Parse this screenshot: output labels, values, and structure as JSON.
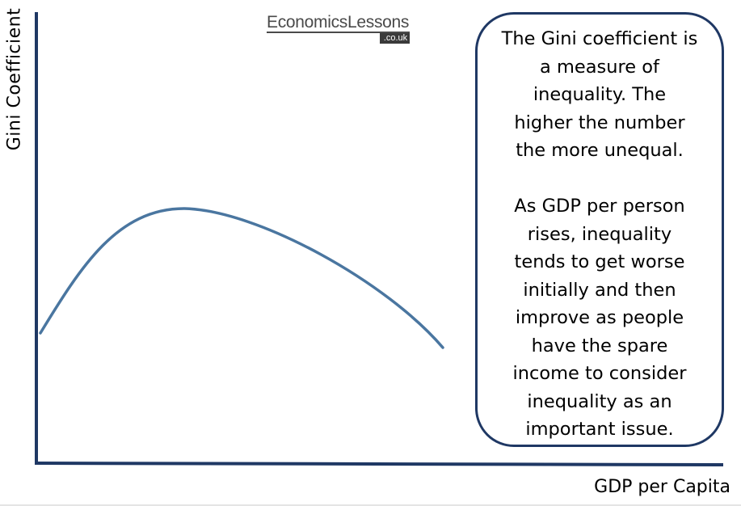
{
  "labels": {
    "y_axis": "Gini Coefficient",
    "x_axis": "GDP per Capita"
  },
  "logo": {
    "name": "EconomicsLessons",
    "tld": ".co.uk"
  },
  "info_box": {
    "paragraph1_lines": [
      "The Gini coefficient is",
      "a measure of",
      "inequality. The",
      "higher the number",
      "the more unequal."
    ],
    "paragraph2_lines": [
      "As GDP per person",
      "rises, inequality",
      "tends to get worse",
      "initially and then",
      "improve as people",
      "have the spare",
      "income to consider",
      "inequality as an",
      "important issue."
    ]
  },
  "colors": {
    "axis": "#1f3864",
    "curve": "#4a76a0",
    "box_border": "#1f3864"
  }
}
